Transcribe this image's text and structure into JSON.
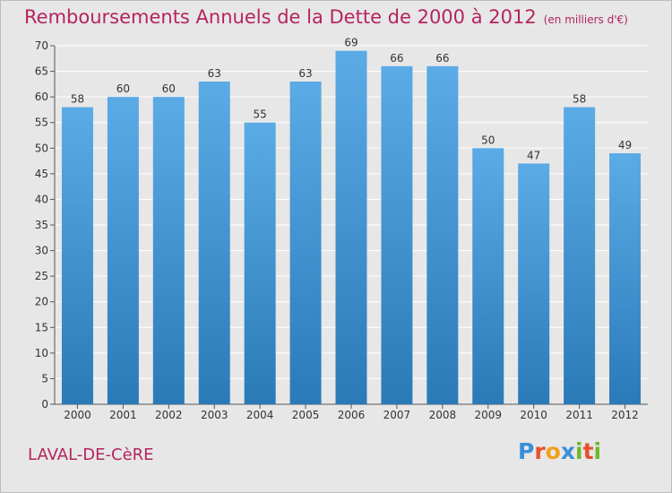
{
  "title": "Remboursements Annuels de la Dette de 2000 à 2012",
  "subtitle": "(en milliers d'€)",
  "commune": "LAVAL-DE-CèRE",
  "brand": {
    "text": "Proxiti",
    "letters": [
      "P",
      "r",
      "o",
      "x",
      "i",
      "t",
      "i"
    ],
    "colors": [
      "#3a8fd8",
      "#e8502f",
      "#f0a11c",
      "#3a8fd8",
      "#6fb82d",
      "#e8502f",
      "#6fb82d"
    ]
  },
  "colors": {
    "title": "#b5245e",
    "bar_top": "#5aabe6",
    "bar_bottom": "#2a7ab8",
    "background": "#e7e7e7"
  },
  "chart_data": {
    "type": "bar",
    "categories": [
      "2000",
      "2001",
      "2002",
      "2003",
      "2004",
      "2005",
      "2006",
      "2007",
      "2008",
      "2009",
      "2010",
      "2011",
      "2012"
    ],
    "values": [
      58,
      60,
      60,
      63,
      55,
      63,
      69,
      66,
      66,
      50,
      47,
      58,
      49
    ],
    "ylim": [
      0,
      70
    ],
    "yticks": [
      0,
      5,
      10,
      15,
      20,
      25,
      30,
      35,
      40,
      45,
      50,
      55,
      60,
      65,
      70
    ],
    "grid": true,
    "legend": "none"
  }
}
